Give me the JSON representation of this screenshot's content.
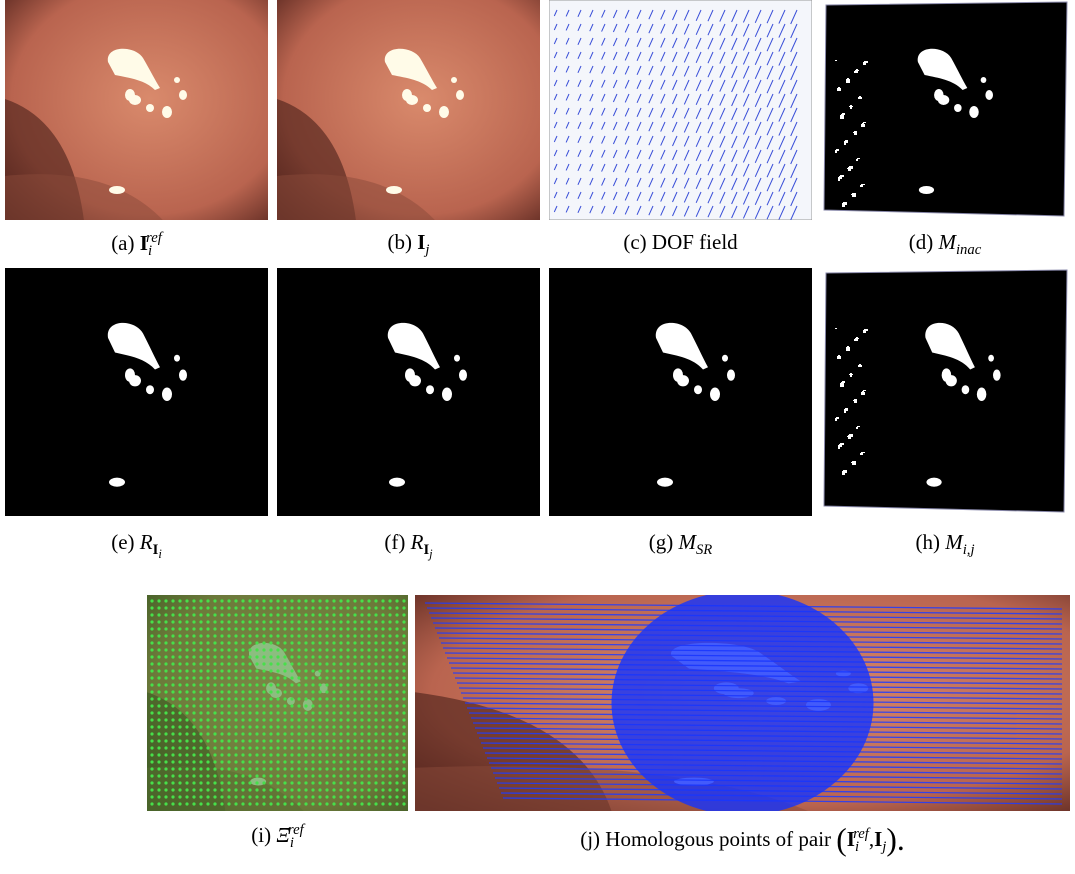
{
  "figure": {
    "panels": [
      {
        "label": "(a)",
        "math": {
          "base": "I",
          "bold": true,
          "sub": "i",
          "sup": "ref"
        }
      },
      {
        "label": "(b)",
        "math": {
          "base": "I",
          "bold": true,
          "sub": "j"
        }
      },
      {
        "label": "(c)",
        "text": "DOF field"
      },
      {
        "label": "(d)",
        "math": {
          "base": "M",
          "sub": "inac"
        }
      },
      {
        "label": "(e)",
        "math": {
          "base": "R",
          "sub": "I",
          "subsub": "i"
        }
      },
      {
        "label": "(f)",
        "math": {
          "base": "R",
          "sub": "I",
          "subsub": "j"
        }
      },
      {
        "label": "(g)",
        "math": {
          "base": "M",
          "sub": "SR"
        }
      },
      {
        "label": "(h)",
        "math": {
          "base": "M",
          "sub": "i,j"
        }
      },
      {
        "label": "(i)",
        "math": {
          "base": "Ξ",
          "sub": "i",
          "sup": "ref"
        }
      },
      {
        "label": "(j)",
        "text": "Homologous points of pair",
        "open": "(",
        "pair": [
          {
            "base": "I",
            "bold": true,
            "sub": "i",
            "sup": "ref"
          },
          {
            "base": "I",
            "bold": true,
            "sub": "j"
          }
        ],
        "sep": ",",
        "close": ")."
      }
    ]
  }
}
